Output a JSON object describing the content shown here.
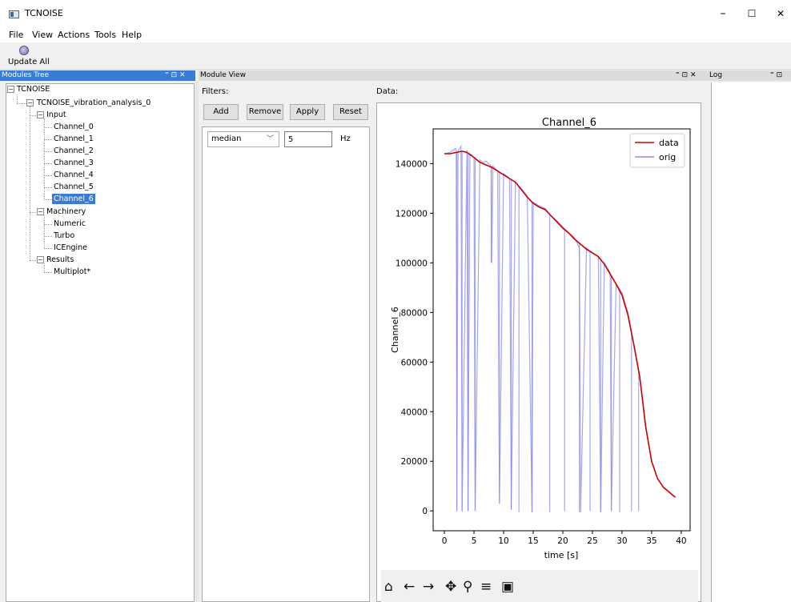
{
  "window": {
    "title": "TCNOISE",
    "minimize": "–",
    "maximize": "☐",
    "close": "✕"
  },
  "menu": [
    "File",
    "View",
    "Actions",
    "Tools",
    "Help"
  ],
  "toolbar": {
    "update_all_label": "Update All",
    "update_icon": "refresh-gear-icon"
  },
  "docks": {
    "modules_tree": {
      "title": "Modules Tree",
      "controls": "⁼ ⊡ ✕"
    },
    "module_view": {
      "title": "Module View",
      "controls": "⁼ ⊡ ✕"
    },
    "log": {
      "title": "Log",
      "controls": "⁼ ⊡"
    }
  },
  "tree": {
    "root": "TCNOISE",
    "analysis": "TCNOISE_vibration_analysis_0",
    "input": {
      "label": "Input",
      "channels": [
        "Channel_0",
        "Channel_1",
        "Channel_2",
        "Channel_3",
        "Channel_4",
        "Channel_5",
        "Channel_6"
      ],
      "selected": "Channel_6"
    },
    "machinery": {
      "label": "Machinery",
      "items": [
        "Numeric",
        "Turbo",
        "ICEngine"
      ]
    },
    "results": {
      "label": "Results",
      "items": [
        "Multiplot*"
      ]
    }
  },
  "filters": {
    "label": "Filters:",
    "buttons": {
      "add": "Add",
      "remove": "Remove",
      "apply": "Apply",
      "reset": "Reset"
    },
    "filter_type": "median",
    "filter_value": "5",
    "unit": "Hz"
  },
  "data_label": "Data:",
  "chart_data": {
    "type": "line",
    "title": "Channel_6",
    "xlabel": "time [s]",
    "ylabel": "Channel_6",
    "xlim": [
      -1.9,
      41.5
    ],
    "ylim": [
      -8000,
      154000
    ],
    "xticks": [
      0,
      5,
      10,
      15,
      20,
      25,
      30,
      35,
      40
    ],
    "yticks": [
      0,
      20000,
      40000,
      60000,
      80000,
      100000,
      120000,
      140000
    ],
    "grid": false,
    "legend": "top-right",
    "series": [
      {
        "name": "data",
        "color": "#cc0000",
        "x": [
          0,
          1,
          2,
          3,
          3.8,
          5,
          6,
          7,
          8,
          9,
          10,
          11,
          12,
          13,
          14,
          15,
          16,
          17,
          18,
          19,
          20,
          21,
          22,
          23,
          24,
          25,
          26,
          27,
          28,
          29,
          30,
          31,
          32,
          33,
          34,
          35,
          36,
          37,
          38,
          39
        ],
        "values": [
          144000,
          144000,
          144500,
          145000,
          144500,
          142500,
          140500,
          139500,
          138500,
          137000,
          135500,
          134000,
          132500,
          129500,
          126500,
          124000,
          122500,
          121500,
          119000,
          116500,
          114000,
          112000,
          109500,
          107500,
          105500,
          104000,
          102500,
          99500,
          95500,
          91500,
          87000,
          79000,
          67000,
          54000,
          34000,
          20000,
          13000,
          9500,
          7500,
          5500
        ]
      },
      {
        "name": "orig",
        "color": "#8888ee",
        "x": [
          0,
          1,
          1.5,
          2,
          2.1,
          2.3,
          2.8,
          3,
          3.8,
          4,
          4.3,
          4.6,
          5,
          5.2,
          6,
          6.5,
          7,
          7.9,
          8,
          8.2,
          9,
          9.3,
          10,
          11,
          11.3,
          12,
          13,
          14,
          14.8,
          15,
          16,
          17,
          18,
          19,
          20,
          21,
          22,
          22.8,
          23,
          24,
          25,
          26,
          26.4,
          27,
          28,
          28.2,
          29,
          30,
          31,
          32,
          33,
          34,
          35,
          36,
          37,
          38,
          39
        ],
        "values": [
          144000,
          144500,
          145500,
          146000,
          0,
          145000,
          147000,
          0,
          145500,
          0,
          144000,
          143500,
          142500,
          0,
          141500,
          140500,
          141000,
          139000,
          100000,
          139000,
          137000,
          3000,
          136000,
          134000,
          500,
          132500,
          130000,
          127000,
          -500,
          124500,
          123000,
          122000,
          119000,
          117000,
          114500,
          112000,
          110000,
          106000,
          -500,
          106000,
          104000,
          102500,
          -500,
          100000,
          96000,
          0,
          91500,
          88000,
          80000,
          67000,
          54000,
          34000,
          20000,
          13000,
          9500,
          7500,
          5500
        ],
        "dips_x": [
          2.1,
          3.0,
          4.0,
          5.2,
          7.9,
          9.3,
          11.3,
          12.6,
          14.8,
          17.8,
          20.3,
          22.8,
          24.6,
          26.4,
          28.2,
          29.6,
          31.6,
          32.8
        ],
        "dips_y": [
          0,
          0,
          0,
          0,
          100000,
          3000,
          500,
          -500,
          -500,
          -500,
          0,
          -500,
          0,
          -500,
          0,
          -500,
          0,
          0
        ]
      }
    ]
  },
  "plot_toolbar": {
    "home": "🏠",
    "back": "←",
    "forward": "→",
    "pan": "✥",
    "zoom": "🔍",
    "configure": "☰",
    "save": "💾"
  }
}
